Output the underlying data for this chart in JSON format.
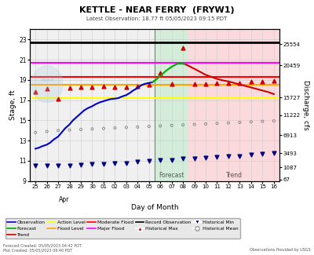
{
  "title": "KETTLE - NEAR FERRY  (FRYW1)",
  "subtitle": "Latest Observation: 18.77 ft 05/05/2023 09:15 PDT",
  "xlabel": "Day of Month",
  "ylabel_left": "Stage, ft",
  "ylabel_right": "Discharge, cfs",
  "footer_left": "Forecast Created: 05/05/2023 04:42 PDT\nPlot Created: 05/05/2023 09:40 PDT",
  "footer_right": "Observations Provided by USGS",
  "ylim": [
    9,
    24
  ],
  "x_ticks_apr": [
    25,
    26,
    27,
    28,
    29,
    30
  ],
  "x_ticks_may": [
    1,
    2,
    3,
    4,
    5,
    6,
    7,
    8,
    9,
    10,
    11,
    12,
    13,
    14,
    15,
    16
  ],
  "x_tick_labels_apr": [
    "25",
    "26",
    "27",
    "28",
    "29",
    "30"
  ],
  "x_tick_labels_may": [
    "01",
    "02",
    "03",
    "04",
    "05",
    "06",
    "07",
    "08",
    "09",
    "10",
    "11",
    "12",
    "13",
    "14",
    "15",
    "16"
  ],
  "action_level": 17.2,
  "flood_level": 18.5,
  "moderate_flood": 19.3,
  "major_flood": 20.7,
  "record_observation": 22.7,
  "forecast_bg_color": "#d4edda",
  "trend_bg_color": "#fadadd",
  "grid_color": "#cccccc",
  "bg_color": "#f0f0f0",
  "obs_color": "#0000cc",
  "forecast_color": "#00aa00",
  "trend_color": "#cc0000",
  "action_color": "#ffff00",
  "flood_color": "#ffa500",
  "moderate_color": "#ff0000",
  "major_color": "#ff00ff",
  "record_color": "#000000",
  "obs_x_apr": [
    25,
    25.3,
    25.6,
    26,
    26.3,
    26.6,
    27,
    27.3,
    27.6,
    28,
    28.3,
    28.6,
    29,
    29.3,
    29.6,
    30,
    30.3,
    30.6
  ],
  "obs_y_apr": [
    12.2,
    12.3,
    12.45,
    12.6,
    12.8,
    13.1,
    13.4,
    13.8,
    14.2,
    14.6,
    15.0,
    15.3,
    15.7,
    16.0,
    16.2,
    16.4,
    16.6,
    16.75
  ],
  "obs_x_may": [
    1,
    1.3,
    1.6,
    2,
    2.3,
    2.6,
    3,
    3.3,
    3.6,
    4,
    4.3,
    4.6,
    5,
    5.3
  ],
  "obs_y_may": [
    16.9,
    17.0,
    17.1,
    17.15,
    17.2,
    17.35,
    17.5,
    17.7,
    17.95,
    18.2,
    18.45,
    18.6,
    18.7,
    18.77
  ],
  "forecast_x_may": [
    5.3,
    5.6,
    6,
    6.5,
    7,
    7.5,
    8,
    8.3
  ],
  "forecast_y": [
    18.77,
    19.0,
    19.4,
    19.9,
    20.3,
    20.6,
    20.6,
    20.5
  ],
  "trend_x_may": [
    8.3,
    9,
    9.5,
    10,
    10.5,
    11,
    11.5,
    12,
    12.5,
    13,
    13.5,
    14,
    14.5,
    15,
    15.5,
    16
  ],
  "trend_y": [
    20.5,
    20.1,
    19.8,
    19.5,
    19.3,
    19.1,
    18.95,
    18.85,
    18.7,
    18.55,
    18.4,
    18.25,
    18.1,
    17.95,
    17.8,
    17.6
  ],
  "hist_mean_apr_x": [
    25,
    26,
    27,
    28,
    29,
    30
  ],
  "hist_mean_apr_y": [
    13.8,
    13.9,
    14.0,
    14.05,
    14.1,
    14.15
  ],
  "hist_mean_may_x": [
    1,
    2,
    3,
    4,
    5,
    6,
    7,
    8,
    9,
    10,
    11,
    12,
    13,
    14,
    15,
    16
  ],
  "hist_mean_may_y": [
    14.2,
    14.25,
    14.3,
    14.35,
    14.4,
    14.45,
    14.5,
    14.55,
    14.6,
    14.65,
    14.7,
    14.75,
    14.8,
    14.85,
    14.9,
    14.95
  ],
  "hist_max_apr_x": [
    25,
    26,
    27,
    28,
    29,
    30
  ],
  "hist_max_apr_y": [
    17.8,
    18.1,
    17.1,
    18.2,
    18.3,
    18.3
  ],
  "hist_max_may_x": [
    1,
    2,
    3,
    4,
    5,
    6,
    7,
    8,
    9,
    10,
    11,
    12,
    13,
    14,
    15,
    16
  ],
  "hist_max_may_y": [
    18.4,
    18.3,
    18.3,
    18.4,
    18.5,
    19.7,
    18.6,
    22.2,
    18.6,
    18.6,
    18.7,
    18.7,
    18.7,
    18.8,
    18.8,
    18.9
  ],
  "hist_min_apr_x": [
    25,
    26,
    27,
    28,
    29,
    30
  ],
  "hist_min_apr_y": [
    10.5,
    10.5,
    10.55,
    10.55,
    10.6,
    10.65
  ],
  "hist_min_may_x": [
    1,
    2,
    3,
    4,
    5,
    6,
    7,
    8,
    9,
    10,
    11,
    12,
    13,
    14,
    15,
    16
  ],
  "hist_min_may_y": [
    10.7,
    10.75,
    10.8,
    10.9,
    11.0,
    11.1,
    11.1,
    11.2,
    11.2,
    11.3,
    11.4,
    11.5,
    11.5,
    11.6,
    11.7,
    11.8
  ],
  "right_y_positions": [
    9.15,
    10.35,
    11.75,
    13.55,
    15.5,
    17.27,
    20.46,
    22.55
  ],
  "right_y_labels": [
    "67",
    "1087",
    "3493",
    "6913",
    "11222",
    "15727",
    "20459",
    "25554"
  ],
  "noaa_logo_color": "#aaccdd"
}
